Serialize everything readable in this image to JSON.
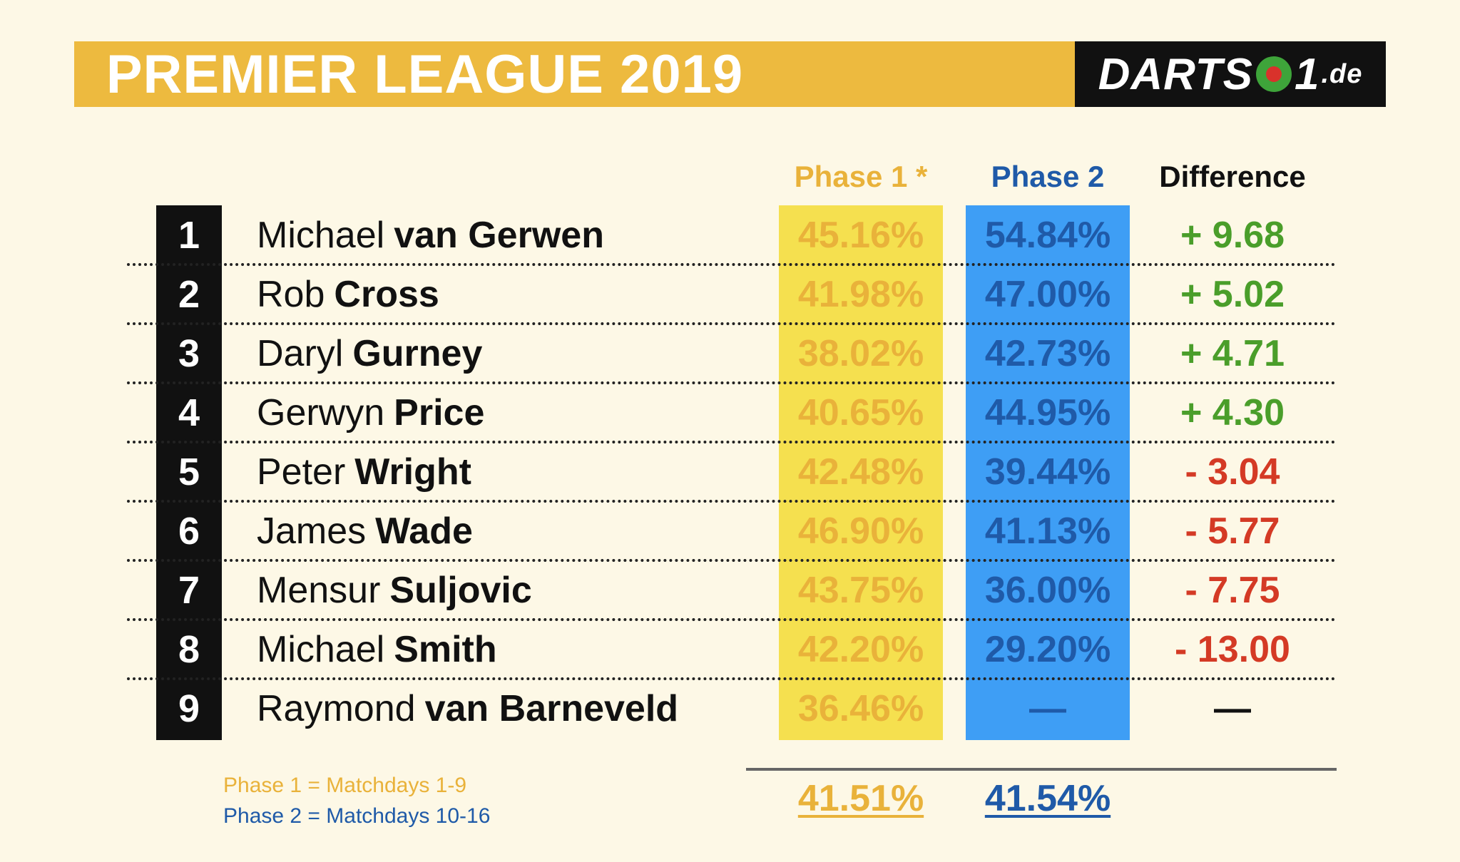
{
  "header": {
    "title": "PREMIER LEAGUE 2019",
    "logo_left": "DARTS",
    "logo_right": "1",
    "logo_tld": ".de"
  },
  "colors": {
    "header_bar": "#edba3f",
    "phase1_column": "#f5e04f",
    "phase1_text": "#e9b23a",
    "phase2_column": "#3e9ef5",
    "phase2_text": "#1f5aa8",
    "positive": "#4a9e2a",
    "negative": "#d43a25",
    "neutral": "#111111"
  },
  "columns": {
    "phase1": "Phase 1 *",
    "phase2": "Phase 2",
    "difference": "Difference"
  },
  "chart_data": {
    "type": "table",
    "title": "PREMIER LEAGUE 2019",
    "columns": [
      "Phase 1 *",
      "Phase 2",
      "Difference"
    ],
    "rows": [
      {
        "rank": "1",
        "first": "Michael",
        "last": "van Gerwen",
        "phase1": "45.16%",
        "phase2": "54.84%",
        "diff": "+ 9.68",
        "sign": "positive"
      },
      {
        "rank": "2",
        "first": "Rob",
        "last": "Cross",
        "phase1": "41.98%",
        "phase2": "47.00%",
        "diff": "+ 5.02",
        "sign": "positive"
      },
      {
        "rank": "3",
        "first": "Daryl",
        "last": "Gurney",
        "phase1": "38.02%",
        "phase2": "42.73%",
        "diff": "+ 4.71",
        "sign": "positive"
      },
      {
        "rank": "4",
        "first": "Gerwyn",
        "last": "Price",
        "phase1": "40.65%",
        "phase2": "44.95%",
        "diff": "+ 4.30",
        "sign": "positive"
      },
      {
        "rank": "5",
        "first": "Peter",
        "last": "Wright",
        "phase1": "42.48%",
        "phase2": "39.44%",
        "diff": "- 3.04",
        "sign": "negative"
      },
      {
        "rank": "6",
        "first": "James",
        "last": "Wade",
        "phase1": "46.90%",
        "phase2": "41.13%",
        "diff": "- 5.77",
        "sign": "negative"
      },
      {
        "rank": "7",
        "first": "Mensur",
        "last": "Suljovic",
        "phase1": "43.75%",
        "phase2": "36.00%",
        "diff": "- 7.75",
        "sign": "negative"
      },
      {
        "rank": "8",
        "first": "Michael",
        "last": "Smith",
        "phase1": "42.20%",
        "phase2": "29.20%",
        "diff": "- 13.00",
        "sign": "negative"
      },
      {
        "rank": "9",
        "first": "Raymond",
        "last": "van Barneveld",
        "phase1": "36.46%",
        "phase2": "—",
        "diff": "—",
        "sign": "neutral"
      }
    ],
    "totals": {
      "phase1": "41.51%",
      "phase2": "41.54%"
    }
  },
  "legend": {
    "phase1": "Phase 1 = Matchdays 1-9",
    "phase2": "Phase 2 = Matchdays 10-16"
  }
}
